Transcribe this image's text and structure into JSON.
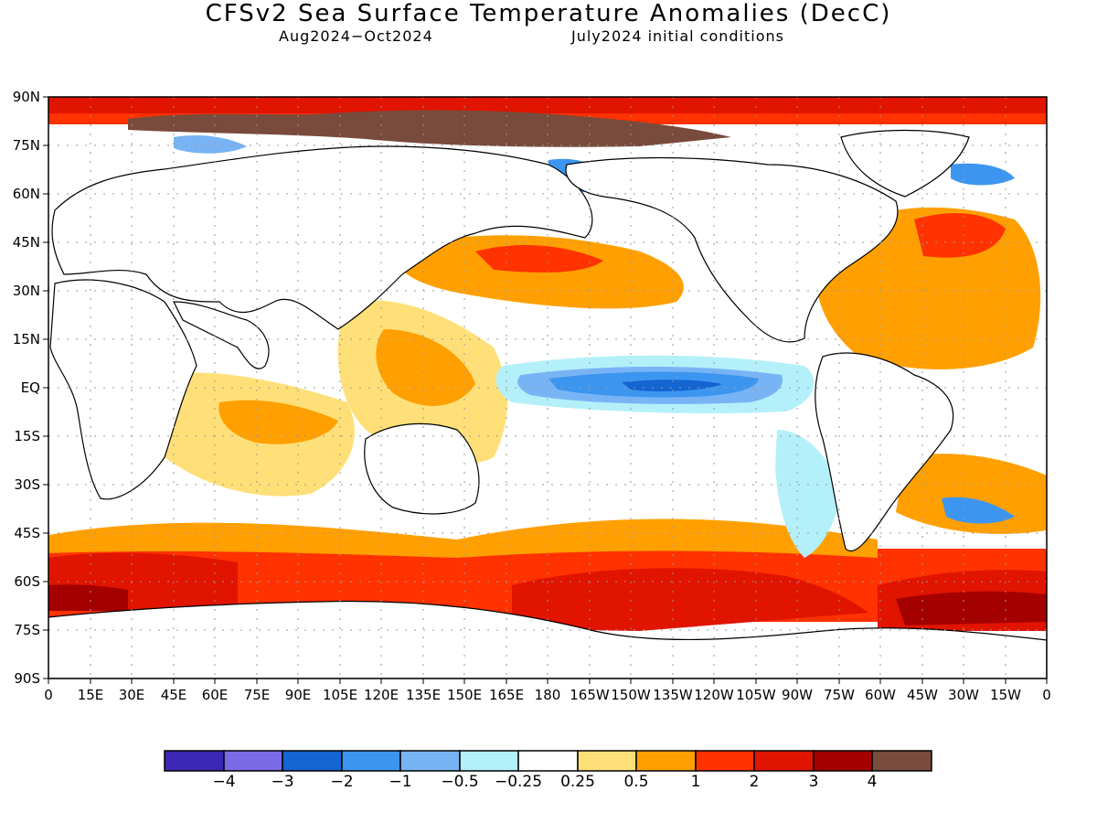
{
  "title": "CFSv2 Sea Surface Temperature Anomalies (DecC)",
  "subtitle_left": "Aug2024−Oct2024",
  "subtitle_right": "July2024 initial conditions",
  "lat_labels": [
    "90N",
    "75N",
    "60N",
    "45N",
    "30N",
    "15N",
    "EQ",
    "15S",
    "30S",
    "45S",
    "60S",
    "75S",
    "90S"
  ],
  "lon_labels": [
    "0",
    "15E",
    "30E",
    "45E",
    "60E",
    "75E",
    "90E",
    "105E",
    "120E",
    "135E",
    "150E",
    "165E",
    "180",
    "165W",
    "150W",
    "135W",
    "120W",
    "105W",
    "90W",
    "75W",
    "60W",
    "45W",
    "30W",
    "15W",
    "0"
  ],
  "colorbar": {
    "colors": [
      "#3c27b4",
      "#7b6ae6",
      "#1464d2",
      "#3c96f0",
      "#78b4f5",
      "#b4f0fa",
      "#ffffff",
      "#ffe078",
      "#ffa000",
      "#ff3200",
      "#e11400",
      "#a50000",
      "#784b3c"
    ],
    "labels": [
      "−4",
      "−3",
      "−2",
      "−1",
      "−0.5",
      "−0.25",
      "0.25",
      "0.5",
      "1",
      "2",
      "3",
      "4"
    ]
  }
}
